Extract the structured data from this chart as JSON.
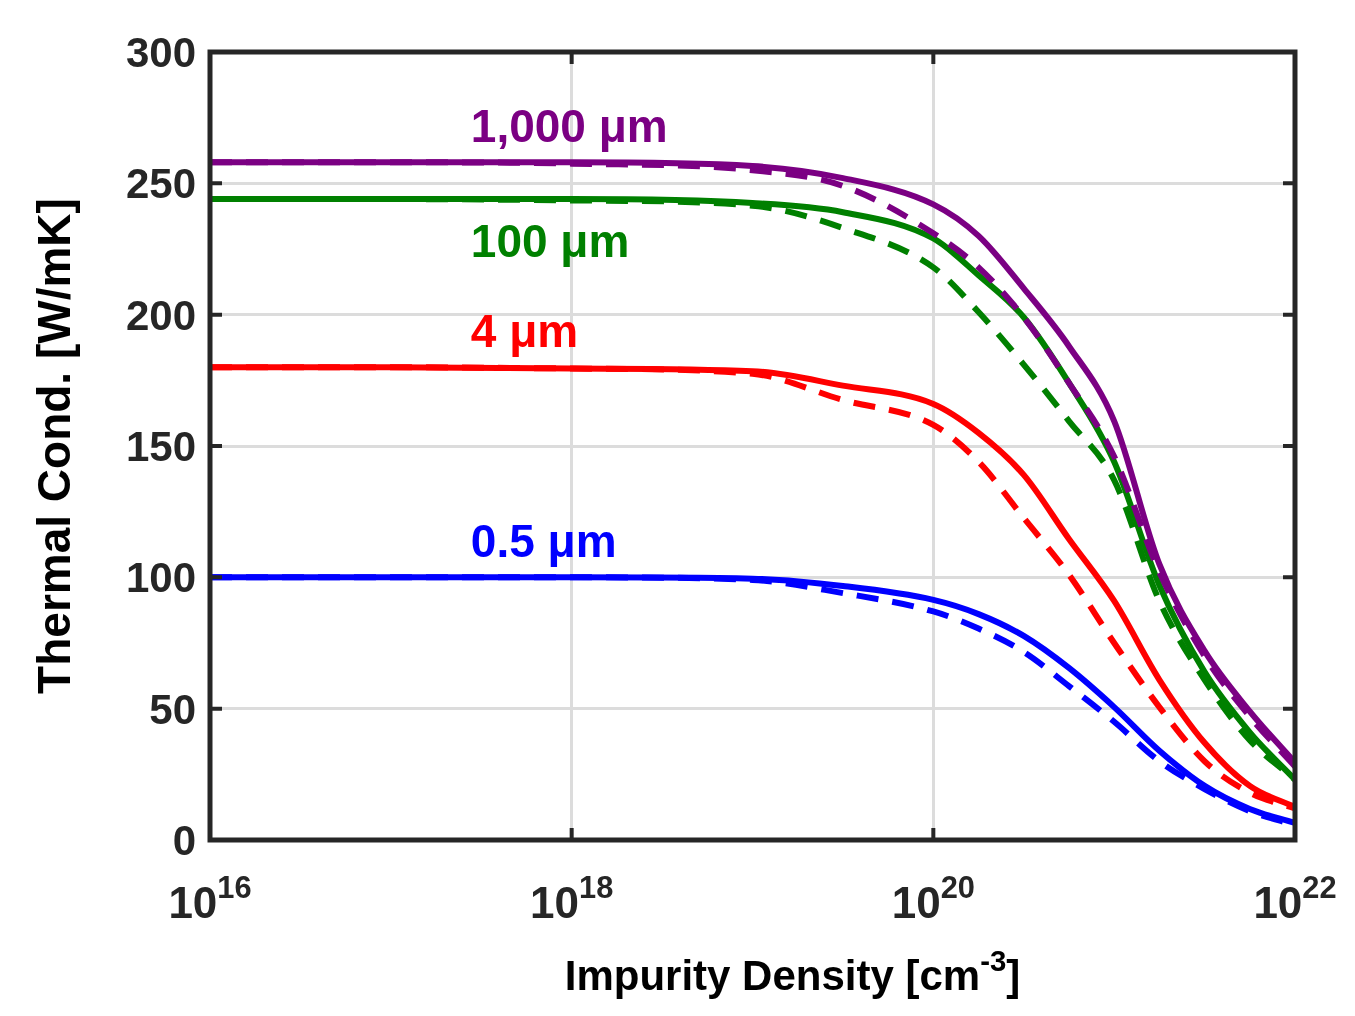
{
  "chart_data": {
    "type": "line",
    "xlabel": "Impurity Density [cm$^{-3}$]",
    "ylabel": "Thermal Cond. [W/mK]",
    "log": "x",
    "grid": true,
    "legend": false,
    "marker": "none",
    "xlim": [
      1e+16,
      1e+22
    ],
    "xticks": [
      {
        "value": 1e+16,
        "label": "10$^{16}$"
      },
      {
        "value": 1e+18,
        "label": "10$^{18}$"
      },
      {
        "value": 1e+20,
        "label": "10$^{20}$"
      },
      {
        "value": 1e+22,
        "label": "10$^{22}$"
      }
    ],
    "ylim": [
      0,
      300
    ],
    "yticks": [
      0,
      50,
      100,
      150,
      200,
      250,
      300
    ],
    "x": [
      1e+16,
      1e+17,
      1e+18,
      1e+19,
      3.162e+19,
      1e+20,
      1.778e+20,
      3.162e+20,
      5.623e+20,
      1e+21,
      1.778e+21,
      3.162e+21,
      5.623e+21,
      1e+22
    ],
    "series": [
      {
        "name": "1,000 μm",
        "color": "#7b0083",
        "line_style": "solid",
        "values": [
          258,
          258,
          258,
          256.6,
          252,
          242,
          230,
          210,
          188,
          159.5,
          105,
          72,
          49,
          29.5
        ]
      },
      {
        "color": "#7b0083",
        "line_style": "dashed",
        "values": [
          258,
          258,
          257.5,
          255,
          249,
          231,
          218,
          199,
          174,
          146,
          102,
          70,
          47,
          28
        ]
      },
      {
        "name": "100 μm",
        "color": "#008000",
        "line_style": "solid",
        "values": [
          244,
          244,
          244,
          242.5,
          239,
          229,
          215,
          199,
          174,
          144,
          97,
          64,
          41,
          23
        ]
      },
      {
        "color": "#008000",
        "line_style": "dashed",
        "values": [
          244,
          244,
          243.5,
          241.5,
          233,
          218,
          201,
          181,
          159.5,
          137,
          91,
          61,
          38,
          23
        ]
      },
      {
        "name": "4 μm",
        "color": "#ff0000",
        "line_style": "solid",
        "values": [
          180,
          180,
          179.5,
          178.5,
          173,
          166,
          155,
          139,
          114.6,
          91,
          61,
          37,
          20.6,
          12.6
        ]
      },
      {
        "color": "#ff0000",
        "line_style": "dashed",
        "values": [
          180,
          180,
          179.5,
          177.5,
          167.5,
          158,
          144,
          122.6,
          101,
          75,
          50.6,
          30,
          18,
          12
        ]
      },
      {
        "name": "0.5 μm",
        "color": "#0000ff",
        "line_style": "solid",
        "values": [
          100,
          100,
          100,
          99.5,
          96.7,
          91.4,
          86,
          77.7,
          65.5,
          50.6,
          34,
          20.6,
          11.8,
          6.5
        ]
      },
      {
        "color": "#0000ff",
        "line_style": "dashed",
        "values": [
          100,
          100,
          100,
          99,
          94,
          87,
          80.5,
          71.6,
          58.6,
          45,
          30,
          19.4,
          11,
          5.7
        ]
      }
    ]
  }
}
